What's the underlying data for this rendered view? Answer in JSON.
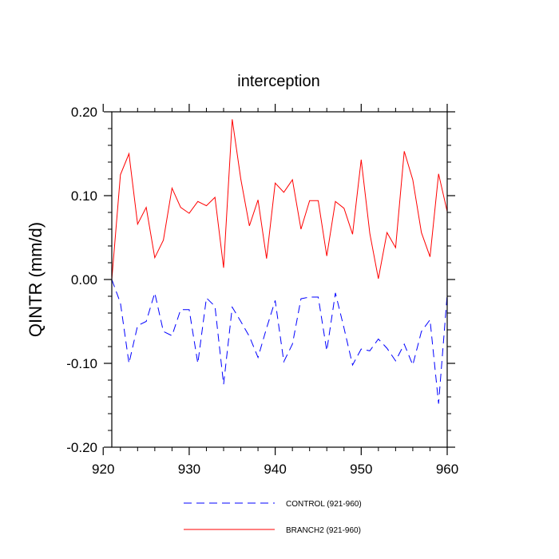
{
  "chart_data": {
    "type": "line",
    "title": "interception",
    "ylabel": "QINTR  (mm/d)",
    "xlabel": "",
    "xlim": [
      921,
      960
    ],
    "ylim": [
      -0.2,
      0.2
    ],
    "x_ticks": [
      920,
      930,
      940,
      950,
      960
    ],
    "x_tick_labels": [
      "920",
      "930",
      "940",
      "950",
      "960"
    ],
    "y_ticks": [
      0.2,
      0.1,
      0.0,
      -0.1,
      -0.2
    ],
    "y_tick_labels": [
      "0.20",
      "0.10",
      "0.00",
      "-0.10",
      "-0.20"
    ],
    "x": [
      921,
      922,
      923,
      924,
      925,
      926,
      927,
      928,
      929,
      930,
      931,
      932,
      933,
      934,
      935,
      936,
      937,
      938,
      939,
      940,
      941,
      942,
      943,
      944,
      945,
      946,
      947,
      948,
      949,
      950,
      951,
      952,
      953,
      954,
      955,
      956,
      957,
      958,
      959,
      960
    ],
    "series": [
      {
        "name": "CONTROL (921-960)",
        "color": "#0000ff",
        "style": "dashed",
        "values": [
          0.0,
          -0.028,
          -0.1,
          -0.055,
          -0.05,
          -0.016,
          -0.062,
          -0.067,
          -0.036,
          -0.036,
          -0.1,
          -0.022,
          -0.032,
          -0.125,
          -0.033,
          -0.05,
          -0.068,
          -0.093,
          -0.058,
          -0.025,
          -0.098,
          -0.077,
          -0.023,
          -0.021,
          -0.021,
          -0.085,
          -0.016,
          -0.058,
          -0.102,
          -0.083,
          -0.085,
          -0.071,
          -0.082,
          -0.097,
          -0.077,
          -0.102,
          -0.062,
          -0.048,
          -0.148,
          -0.018
        ]
      },
      {
        "name": "BRANCH2 (921-960)",
        "color": "#ff0000",
        "style": "solid",
        "values": [
          0.0,
          0.125,
          0.15,
          0.066,
          0.086,
          0.026,
          0.047,
          0.109,
          0.086,
          0.079,
          0.093,
          0.088,
          0.098,
          0.014,
          0.191,
          0.12,
          0.064,
          0.095,
          0.025,
          0.115,
          0.104,
          0.119,
          0.06,
          0.094,
          0.094,
          0.028,
          0.093,
          0.085,
          0.054,
          0.143,
          0.055,
          0.001,
          0.056,
          0.038,
          0.153,
          0.119,
          0.056,
          0.027,
          0.126,
          0.081
        ]
      }
    ],
    "legend": [
      "CONTROL (921-960)",
      "BRANCH2 (921-960)"
    ],
    "legend_position": "bottom"
  }
}
